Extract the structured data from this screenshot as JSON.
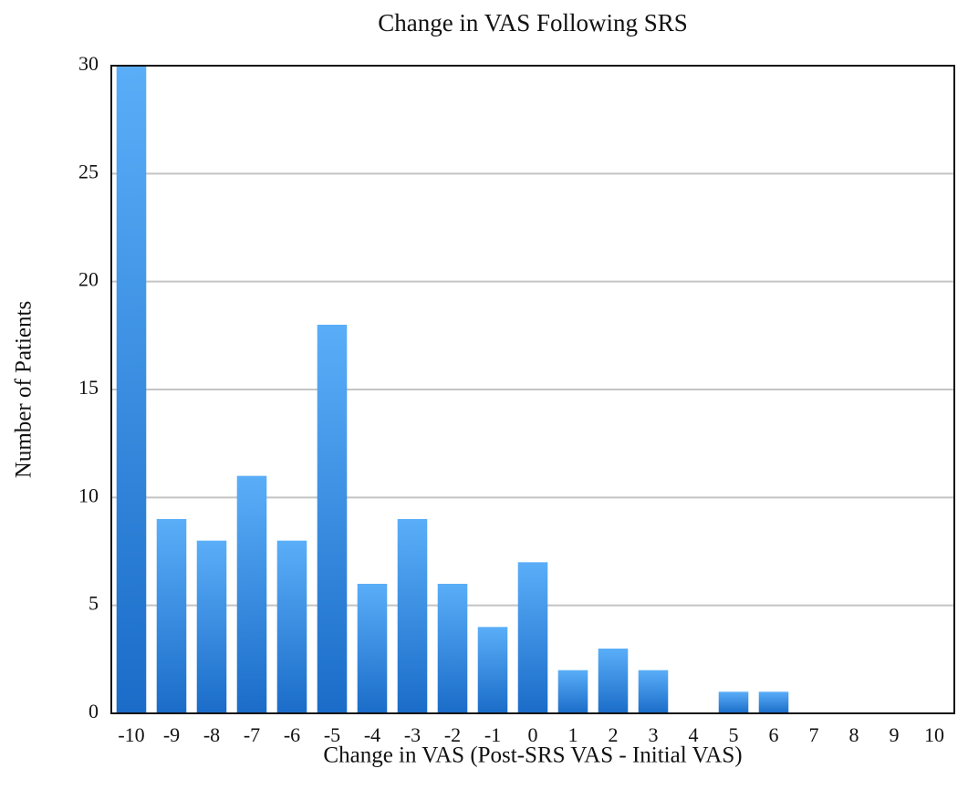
{
  "chart_data": {
    "type": "bar",
    "title": "Change in VAS Following SRS",
    "x_label": "Change in VAS (Post-SRS VAS - Initial VAS)",
    "y_label": "Number of Patients",
    "categories": [
      "-10",
      "-9",
      "-8",
      "-7",
      "-6",
      "-5",
      "-4",
      "-3",
      "-2",
      "-1",
      "0",
      "1",
      "2",
      "3",
      "4",
      "5",
      "6",
      "7",
      "8",
      "9",
      "10"
    ],
    "values": [
      30,
      9,
      8,
      11,
      8,
      18,
      6,
      9,
      6,
      4,
      7,
      2,
      3,
      2,
      0,
      1,
      1,
      0,
      0,
      0,
      0
    ],
    "color": "#2a86de",
    "gradient": [
      "#5aaef8",
      "#1a6cc8"
    ],
    "ylim": [
      0,
      30
    ],
    "yticks": [
      0,
      5,
      10,
      15,
      20,
      25,
      30
    ],
    "grid": true
  }
}
